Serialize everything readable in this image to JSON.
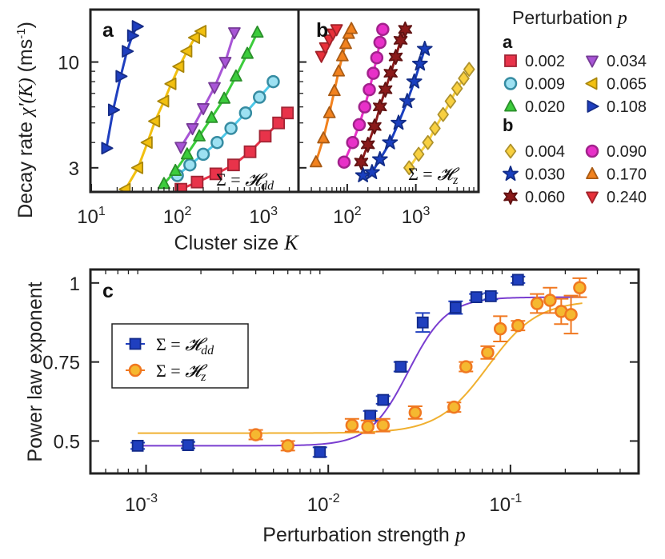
{
  "chart_data": [
    {
      "panel": "a",
      "type": "scatter",
      "xscale": "log",
      "yscale": "log",
      "xlim": [
        10,
        2500
      ],
      "ylim": [
        2.3,
        18
      ],
      "xlabel": "Cluster size K",
      "ylabel": "Decay rate χ'(K) (ms⁻¹)",
      "xtick_labels": [
        "10¹",
        "10²",
        "10³"
      ],
      "ytick_labels": [
        "3",
        "10"
      ],
      "annotation": "Σ = 𝓗dd",
      "series": [
        {
          "name": "0.002",
          "marker": "square",
          "color": "#e8334a",
          "x": [
            110,
            170,
            280,
            450,
            700,
            1050,
            1500,
            1900
          ],
          "y": [
            2.35,
            2.55,
            2.8,
            3.1,
            3.6,
            4.3,
            5.0,
            5.6
          ]
        },
        {
          "name": "0.009",
          "marker": "circle",
          "color": "#4dc8e8",
          "x": [
            100,
            140,
            200,
            290,
            420,
            620,
            900,
            1300
          ],
          "y": [
            2.75,
            3.1,
            3.5,
            4.0,
            4.7,
            5.6,
            6.7,
            8.0
          ]
        },
        {
          "name": "0.020",
          "marker": "triangle-up",
          "color": "#3ccc3c",
          "x": [
            70,
            95,
            130,
            180,
            250,
            350,
            480,
            650,
            850
          ],
          "y": [
            2.5,
            2.9,
            3.5,
            4.3,
            5.3,
            6.6,
            8.5,
            11.0,
            14.0
          ]
        },
        {
          "name": "0.034",
          "marker": "triangle-down",
          "color": "#a855d6",
          "x": [
            110,
            150,
            200,
            270,
            360,
            460
          ],
          "y": [
            3.8,
            4.7,
            5.9,
            7.5,
            10.0,
            14.0
          ]
        },
        {
          "name": "0.065",
          "marker": "triangle-left",
          "color": "#f2c010",
          "x": [
            25,
            35,
            45,
            55,
            70,
            85,
            105,
            130,
            160,
            190
          ],
          "y": [
            2.35,
            3.0,
            4.0,
            5.1,
            6.4,
            7.8,
            9.5,
            11.3,
            13.2,
            14.2
          ]
        },
        {
          "name": "0.108",
          "marker": "triangle-right",
          "color": "#1f3fbf",
          "x": [
            15,
            18,
            22,
            26,
            30,
            34
          ],
          "y": [
            3.75,
            5.8,
            8.5,
            11.3,
            13.5,
            15.0
          ]
        }
      ]
    },
    {
      "panel": "b",
      "type": "scatter",
      "xscale": "log",
      "yscale": "log",
      "xlim": [
        20,
        8000
      ],
      "ylim": [
        2.3,
        18
      ],
      "xlabel": "Cluster size K",
      "xtick_labels": [
        "10²",
        "10³"
      ],
      "annotation": "Σ = 𝓗z",
      "series": [
        {
          "name": "0.004",
          "marker": "diamond",
          "color": "#f8d040",
          "x": [
            800,
            1100,
            1500,
            1900,
            2500,
            3200,
            4000,
            5000,
            6000
          ],
          "y": [
            3.0,
            3.5,
            4.0,
            4.7,
            5.5,
            6.4,
            7.4,
            8.3,
            9.2
          ]
        },
        {
          "name": "0.030",
          "marker": "star",
          "color": "#1a3fbf",
          "x": [
            170,
            230,
            300,
            420,
            560,
            750,
            950,
            1150,
            1350
          ],
          "y": [
            2.75,
            2.85,
            3.3,
            4.0,
            5.0,
            6.4,
            8.0,
            9.8,
            11.6
          ]
        },
        {
          "name": "0.060",
          "marker": "hexagram",
          "color": "#8b1a1a",
          "x": [
            160,
            200,
            250,
            300,
            360,
            430,
            510,
            600,
            700
          ],
          "y": [
            3.2,
            3.9,
            4.8,
            6.0,
            7.3,
            8.8,
            10.6,
            12.8,
            14.5
          ]
        },
        {
          "name": "0.090",
          "marker": "circle",
          "color": "#e830c8",
          "x": [
            90,
            120,
            150,
            180,
            210,
            240,
            270,
            300,
            330
          ],
          "y": [
            3.2,
            4.0,
            4.9,
            6.0,
            7.3,
            8.8,
            10.5,
            12.5,
            14.5
          ]
        },
        {
          "name": "0.170",
          "marker": "triangle-up",
          "color": "#f2821e",
          "x": [
            35,
            45,
            55,
            65,
            75,
            85,
            95,
            105,
            115
          ],
          "y": [
            3.2,
            4.2,
            5.6,
            7.2,
            9.0,
            10.7,
            12.3,
            13.8,
            14.6
          ]
        },
        {
          "name": "0.240",
          "marker": "triangle-down",
          "color": "#e8303a",
          "x": [
            42,
            48,
            55,
            62,
            70
          ],
          "y": [
            10.7,
            11.8,
            12.9,
            13.8,
            14.5
          ]
        }
      ]
    },
    {
      "panel": "c",
      "type": "scatter",
      "xscale": "log",
      "xlim": [
        0.0005,
        0.5
      ],
      "ylim": [
        0.4,
        1.04
      ],
      "xlabel": "Perturbation strength p",
      "ylabel": "Power law exponent",
      "xtick_labels": [
        "10⁻³",
        "10⁻²",
        "10⁻¹"
      ],
      "ytick_labels": [
        "0.5",
        "0.75",
        "1"
      ],
      "series": [
        {
          "name": "Σ = 𝓗dd",
          "marker": "square",
          "color": "#1f3fbf",
          "errcolor": "#1f3fbf",
          "x": [
            0.0009,
            0.0017,
            0.009,
            0.017,
            0.02,
            0.025,
            0.033,
            0.05,
            0.065,
            0.078,
            0.11
          ],
          "y": [
            0.485,
            0.487,
            0.465,
            0.58,
            0.63,
            0.735,
            0.875,
            0.922,
            0.955,
            0.958,
            1.01
          ],
          "err": [
            0.01,
            0.01,
            0.015,
            0.015,
            0.012,
            0.015,
            0.03,
            0.02,
            0.01,
            0.01,
            0.01
          ],
          "fit": {
            "low": 0.485,
            "high": 0.955,
            "center": 0.0275,
            "width": 0.07
          }
        },
        {
          "name": "Σ = 𝓗z",
          "marker": "circle",
          "color": "#f5b830",
          "errcolor": "#f07820",
          "x": [
            0.004,
            0.006,
            0.0135,
            0.0165,
            0.02,
            0.03,
            0.049,
            0.057,
            0.075,
            0.088,
            0.11,
            0.14,
            0.165,
            0.19,
            0.215,
            0.24
          ],
          "y": [
            0.52,
            0.485,
            0.55,
            0.545,
            0.55,
            0.59,
            0.607,
            0.735,
            0.78,
            0.855,
            0.865,
            0.935,
            0.945,
            0.91,
            0.9,
            0.985
          ],
          "err": [
            0.015,
            0.015,
            0.02,
            0.02,
            0.02,
            0.02,
            0.015,
            0.015,
            0.02,
            0.04,
            0.015,
            0.03,
            0.04,
            0.04,
            0.06,
            0.03
          ],
          "fit": {
            "low": 0.525,
            "high": 0.945,
            "center": 0.075,
            "width": 0.09
          }
        }
      ],
      "legend_position": "upper-left"
    }
  ],
  "legend": {
    "title_prefix": "Perturbation",
    "title_var": "p",
    "section_a": "a",
    "section_b": "b"
  },
  "labels": {
    "panel_a": "a",
    "panel_b": "b",
    "panel_c": "c",
    "ylabel_top_prefix": "Decay rate",
    "ylabel_top_math": "χ'(K)",
    "ylabel_top_unit": "(ms",
    "ylabel_top_sup": "-1",
    "ylabel_top_close": ")",
    "xlabel_top_prefix": "Cluster size",
    "xlabel_top_var": "K",
    "xlabel_bottom_prefix": "Perturbation strength",
    "xlabel_bottom_var": "p",
    "ylabel_bottom": "Power law exponent",
    "ann_a_prefix": "Σ = ",
    "ann_a_H": "𝓗",
    "ann_a_sub": "dd",
    "ann_b_prefix": "Σ = ",
    "ann_b_H": "𝓗",
    "ann_b_sub": "z"
  }
}
